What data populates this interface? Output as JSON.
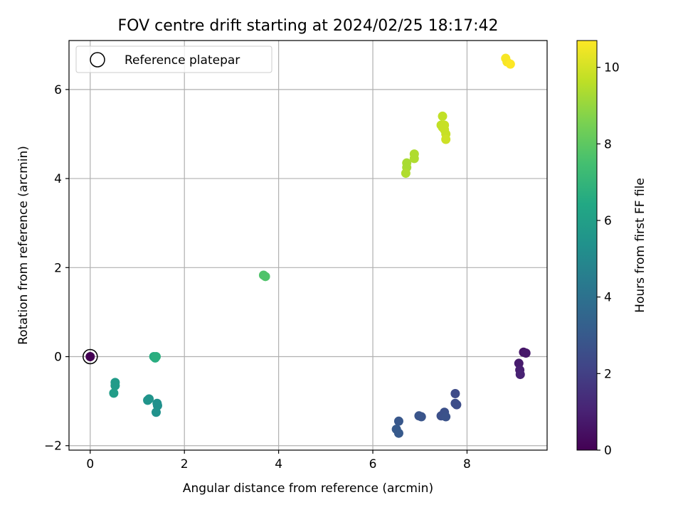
{
  "chart_data": {
    "type": "scatter",
    "title": "FOV centre drift starting at 2024/02/25 18:17:42",
    "xlabel": "Angular distance from reference (arcmin)",
    "ylabel": "Rotation from reference (arcmin)",
    "xlim": [
      -0.45,
      9.7
    ],
    "ylim": [
      -2.1,
      7.1
    ],
    "xticks": [
      0,
      2,
      4,
      6,
      8
    ],
    "yticks": [
      -2,
      0,
      2,
      4,
      6
    ],
    "grid": true,
    "legend": {
      "placement": "upper-left",
      "entries": [
        "Reference platepar"
      ]
    },
    "reference_point": {
      "x": 0,
      "y": 0,
      "label": "Reference platepar"
    },
    "colorbar": {
      "label": "Hours from first FF file",
      "colormap": "viridis",
      "range": [
        0,
        10.7
      ],
      "ticks": [
        0,
        2,
        4,
        6,
        8,
        10
      ]
    },
    "points": [
      {
        "x": 0.0,
        "y": 0.0,
        "c": 0.0
      },
      {
        "x": 9.2,
        "y": 0.1,
        "c": 0.6
      },
      {
        "x": 9.25,
        "y": 0.08,
        "c": 0.7
      },
      {
        "x": 9.1,
        "y": -0.15,
        "c": 0.8
      },
      {
        "x": 9.12,
        "y": -0.3,
        "c": 0.9
      },
      {
        "x": 9.13,
        "y": -0.4,
        "c": 1.0
      },
      {
        "x": 7.75,
        "y": -0.83,
        "c": 2.4
      },
      {
        "x": 7.75,
        "y": -1.05,
        "c": 2.5
      },
      {
        "x": 7.78,
        "y": -1.08,
        "c": 2.5
      },
      {
        "x": 7.52,
        "y": -1.25,
        "c": 2.6
      },
      {
        "x": 7.45,
        "y": -1.33,
        "c": 2.6
      },
      {
        "x": 7.55,
        "y": -1.35,
        "c": 2.7
      },
      {
        "x": 6.98,
        "y": -1.33,
        "c": 2.8
      },
      {
        "x": 7.03,
        "y": -1.35,
        "c": 2.8
      },
      {
        "x": 6.55,
        "y": -1.45,
        "c": 2.9
      },
      {
        "x": 6.5,
        "y": -1.63,
        "c": 3.0
      },
      {
        "x": 6.55,
        "y": -1.72,
        "c": 3.0
      },
      {
        "x": 1.42,
        "y": -1.05,
        "c": 5.3
      },
      {
        "x": 1.43,
        "y": -1.1,
        "c": 5.3
      },
      {
        "x": 1.4,
        "y": -1.25,
        "c": 5.4
      },
      {
        "x": 1.25,
        "y": -0.95,
        "c": 5.5
      },
      {
        "x": 1.22,
        "y": -0.98,
        "c": 5.5
      },
      {
        "x": 0.53,
        "y": -0.58,
        "c": 5.8
      },
      {
        "x": 0.53,
        "y": -0.65,
        "c": 5.8
      },
      {
        "x": 0.5,
        "y": -0.82,
        "c": 5.9
      },
      {
        "x": 1.35,
        "y": 0.0,
        "c": 6.6
      },
      {
        "x": 1.38,
        "y": -0.03,
        "c": 6.6
      },
      {
        "x": 1.4,
        "y": 0.0,
        "c": 6.7
      },
      {
        "x": 3.68,
        "y": 1.83,
        "c": 7.7
      },
      {
        "x": 3.72,
        "y": 1.8,
        "c": 7.7
      },
      {
        "x": 6.72,
        "y": 4.35,
        "c": 9.3
      },
      {
        "x": 6.72,
        "y": 4.25,
        "c": 9.3
      },
      {
        "x": 6.7,
        "y": 4.12,
        "c": 9.4
      },
      {
        "x": 6.88,
        "y": 4.55,
        "c": 9.4
      },
      {
        "x": 6.88,
        "y": 4.45,
        "c": 9.4
      },
      {
        "x": 7.48,
        "y": 5.4,
        "c": 9.7
      },
      {
        "x": 7.45,
        "y": 5.2,
        "c": 9.7
      },
      {
        "x": 7.48,
        "y": 5.15,
        "c": 9.7
      },
      {
        "x": 7.52,
        "y": 5.2,
        "c": 9.8
      },
      {
        "x": 7.52,
        "y": 5.1,
        "c": 9.8
      },
      {
        "x": 7.55,
        "y": 5.0,
        "c": 9.8
      },
      {
        "x": 7.55,
        "y": 4.88,
        "c": 9.9
      },
      {
        "x": 8.82,
        "y": 6.7,
        "c": 10.6
      },
      {
        "x": 8.85,
        "y": 6.62,
        "c": 10.6
      },
      {
        "x": 8.92,
        "y": 6.57,
        "c": 10.7
      }
    ]
  }
}
